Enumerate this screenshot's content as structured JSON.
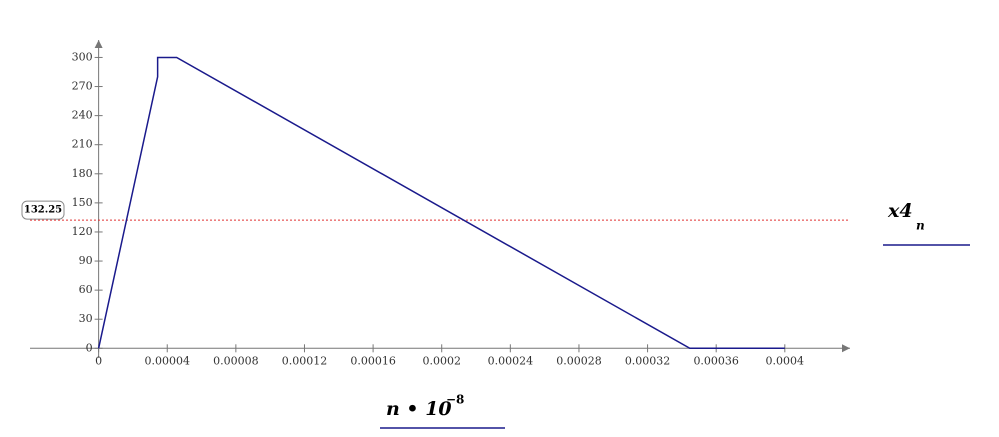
{
  "chart_data": {
    "type": "line",
    "x": [
      0,
      3.44e-05,
      3.44e-05,
      4.55e-05,
      0.0003446,
      0.0004
    ],
    "series": [
      {
        "name": "x4",
        "name_sub": "n",
        "color": "#1a1a8c",
        "values": [
          0,
          280,
          300,
          300,
          0,
          0
        ]
      }
    ],
    "xlabel": {
      "base": "n • 10",
      "exp": "−8"
    },
    "xlim": [
      -4e-05,
      0.000438
    ],
    "ylim": [
      -10,
      318
    ],
    "xticks": [
      0,
      4e-05,
      8e-05,
      0.00012,
      0.00016,
      0.0002,
      0.00024,
      0.00028,
      0.00032,
      0.00036,
      0.0004
    ],
    "yticks": [
      0,
      30,
      60,
      90,
      120,
      150,
      180,
      210,
      240,
      270,
      300
    ],
    "marker": {
      "value": 132.25,
      "color": "#e03030"
    }
  }
}
